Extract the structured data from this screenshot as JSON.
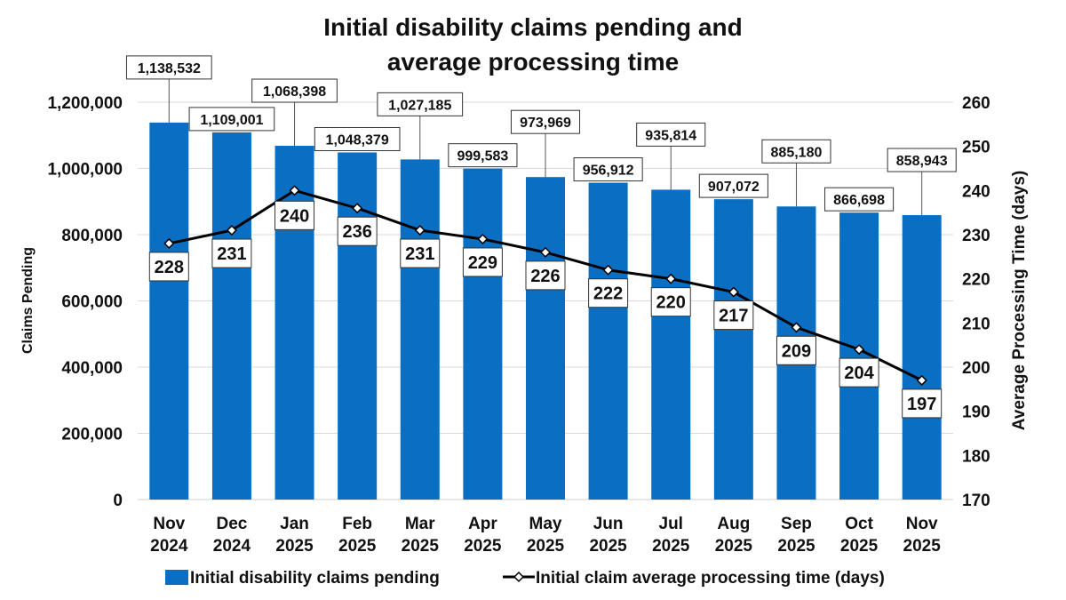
{
  "chart_data": {
    "type": "bar+line",
    "title_lines": [
      "Initial disability claims pending and",
      "average processing time"
    ],
    "categories": [
      [
        "Nov",
        "2024"
      ],
      [
        "Dec",
        "2024"
      ],
      [
        "Jan",
        "2025"
      ],
      [
        "Feb",
        "2025"
      ],
      [
        "Mar",
        "2025"
      ],
      [
        "Apr",
        "2025"
      ],
      [
        "May",
        "2025"
      ],
      [
        "Jun",
        "2025"
      ],
      [
        "Jul",
        "2025"
      ],
      [
        "Aug",
        "2025"
      ],
      [
        "Sep",
        "2025"
      ],
      [
        "Oct",
        "2025"
      ],
      [
        "Nov",
        "2025"
      ]
    ],
    "series": [
      {
        "name": "Initial disability claims pending",
        "type": "bar",
        "axis": "left",
        "color": "#0a6fc2",
        "values": [
          1138532,
          1109001,
          1068398,
          1048379,
          1027185,
          999583,
          973969,
          956912,
          935814,
          907072,
          885180,
          866698,
          858943
        ],
        "labels": [
          "1,138,532",
          "1,109,001",
          "1,068,398",
          "1,048,379",
          "1,027,185",
          "999,583",
          "973,969",
          "956,912",
          "935,814",
          "907,072",
          "885,180",
          "866,698",
          "858,943"
        ]
      },
      {
        "name": "Initial claim average processing time (days)",
        "type": "line",
        "axis": "right",
        "color": "#000000",
        "values": [
          228,
          231,
          240,
          236,
          231,
          229,
          226,
          222,
          220,
          217,
          209,
          204,
          197
        ],
        "labels": [
          "228",
          "231",
          "240",
          "236",
          "231",
          "229",
          "226",
          "222",
          "220",
          "217",
          "209",
          "204",
          "197"
        ]
      }
    ],
    "y_left": {
      "label": "Claims Pending",
      "range": [
        0,
        1200000
      ],
      "ticks": [
        0,
        200000,
        400000,
        600000,
        800000,
        1000000,
        1200000
      ],
      "tick_labels": [
        "0",
        "200,000",
        "400,000",
        "600,000",
        "800,000",
        "1,000,000",
        "1,200,000"
      ]
    },
    "y_right": {
      "label": "Average Processing Time (days)",
      "range": [
        170,
        260
      ],
      "ticks": [
        170,
        180,
        190,
        200,
        210,
        220,
        230,
        240,
        250,
        260
      ],
      "tick_labels": [
        "170",
        "180",
        "190",
        "200",
        "210",
        "220",
        "230",
        "240",
        "250",
        "260"
      ]
    },
    "grid": true,
    "legend_position": "bottom"
  }
}
